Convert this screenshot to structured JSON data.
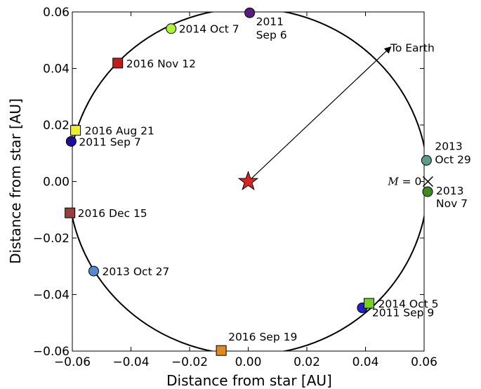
{
  "chart_data": {
    "type": "scatter",
    "xlabel": "Distance from star [AU]",
    "ylabel": "Distance from star [AU]",
    "xlim": [
      -0.06,
      0.06
    ],
    "ylim": [
      -0.06,
      0.06
    ],
    "x_ticks": [
      -0.06,
      -0.04,
      -0.02,
      0.0,
      0.02,
      0.04,
      0.06
    ],
    "y_ticks": [
      -0.06,
      -0.04,
      -0.02,
      0.0,
      0.02,
      0.04,
      0.06
    ],
    "x_tick_labels": [
      "−0.06",
      "−0.04",
      "−0.02",
      "0.00",
      "0.02",
      "0.04",
      "0.06"
    ],
    "y_tick_labels": [
      "−0.06",
      "−0.04",
      "−0.02",
      "0.00",
      "0.02",
      "0.04",
      "0.06"
    ],
    "grid": false,
    "orbit": {
      "center": [
        0,
        0
      ],
      "radius": 0.0613
    },
    "star": {
      "x": 0.0,
      "y": 0.0,
      "color": "#dd2222"
    },
    "earth_arrow": {
      "from": [
        0.0,
        0.0
      ],
      "to": [
        0.0485,
        0.0475
      ],
      "label": "To Earth"
    },
    "mean_anomaly_marker": {
      "x": 0.0613,
      "y": 0.0,
      "label_var": "M",
      "label_rest": " = 0"
    },
    "points": [
      {
        "label": "2011",
        "label2": "Sep 6",
        "x": 0.0005,
        "y": 0.0597,
        "marker": "circle",
        "color": "#5a1a7e"
      },
      {
        "label": "2014 Oct 7",
        "x": -0.0263,
        "y": 0.0541,
        "marker": "circle",
        "color": "#aef23a"
      },
      {
        "label": "2016 Nov 12",
        "x": -0.0445,
        "y": 0.0419,
        "marker": "square",
        "color": "#c61b1b"
      },
      {
        "label": "2016 Aug 21",
        "x": -0.0589,
        "y": 0.0181,
        "marker": "square",
        "color": "#eeee2a"
      },
      {
        "label": "2011 Sep 7",
        "x": -0.0604,
        "y": 0.0142,
        "marker": "circle",
        "color": "#1e0f9a"
      },
      {
        "label": "2016 Dec 15",
        "x": -0.0608,
        "y": -0.0111,
        "marker": "square",
        "color": "#9c3d3d"
      },
      {
        "label": "2013 Oct 27",
        "x": -0.0527,
        "y": -0.0317,
        "marker": "circle",
        "color": "#5588d0"
      },
      {
        "label": "2016 Sep 19",
        "x": -0.0092,
        "y": -0.0598,
        "marker": "square",
        "color": "#e08a1e"
      },
      {
        "label": "2011 Sep 9",
        "x": 0.0389,
        "y": -0.0447,
        "marker": "circle",
        "color": "#2020cc"
      },
      {
        "label": "2014 Oct 5",
        "x": 0.0412,
        "y": -0.0431,
        "marker": "square",
        "color": "#72d21c"
      },
      {
        "label": "2013",
        "label2": "Oct 29",
        "x": 0.0608,
        "y": 0.0075,
        "marker": "circle",
        "color": "#5c9c8c"
      },
      {
        "label": "2013",
        "label2": "Nov 7",
        "x": 0.0612,
        "y": -0.0036,
        "marker": "circle",
        "color": "#3e8a1e"
      }
    ]
  }
}
